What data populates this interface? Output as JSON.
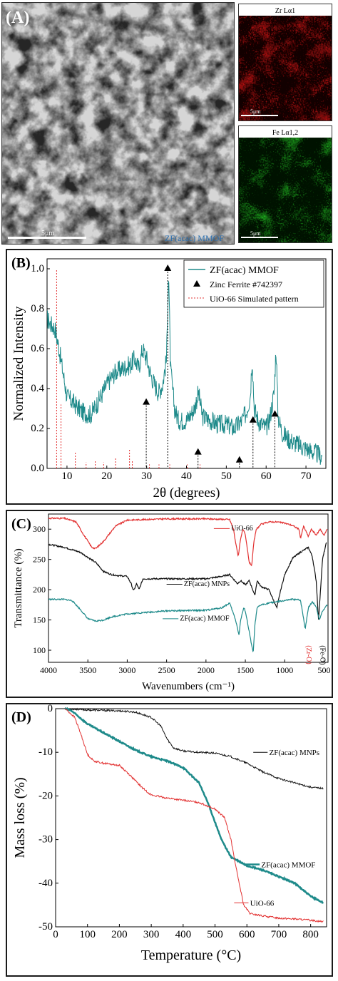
{
  "panel_a": {
    "label": "(A)",
    "sem_scale": "5μm",
    "sem_caption": "ZF(acac) MMOF",
    "zr_title": "Zr Lα1",
    "zr_scale": "5μm",
    "fe_title": "Fe Lα1,2",
    "fe_scale": "5μm",
    "colors": {
      "zr": "#c81414",
      "fe": "#1e9e1e",
      "caption": "#2a6fb0"
    }
  },
  "chart_data": [
    {
      "id": "B",
      "type": "line",
      "label": "(B)",
      "xlabel": "2θ (degrees)",
      "ylabel": "Normalized Intensity",
      "xlim": [
        5,
        75
      ],
      "ylim": [
        0,
        1.05
      ],
      "xticks": [
        "10",
        "20",
        "30",
        "40",
        "50",
        "60",
        "70"
      ],
      "yticks": [
        "0.0",
        "0.2",
        "0.4",
        "0.6",
        "0.8",
        "1.0"
      ],
      "legend": [
        "ZF(acac) MMOF",
        "Zinc Ferrite #742397",
        "UiO-66 Simulated pattern"
      ],
      "legend_position": "top-right",
      "series": [
        {
          "name": "ZF(acac) MMOF",
          "color": "#1e8a8a",
          "x": [
            5,
            6,
            7,
            8,
            9,
            10,
            12,
            14,
            16,
            18,
            20,
            22,
            24,
            26,
            27,
            28,
            29,
            30,
            31,
            32,
            33,
            34,
            35,
            35.5,
            36,
            37,
            38,
            40,
            42,
            43,
            44,
            46,
            48,
            50,
            52,
            54,
            55,
            56,
            56.5,
            57,
            58,
            60,
            61,
            62,
            62.5,
            63,
            64,
            66,
            68,
            70,
            72,
            74
          ],
          "y": [
            0.75,
            0.72,
            0.7,
            0.6,
            0.48,
            0.36,
            0.32,
            0.28,
            0.27,
            0.34,
            0.42,
            0.48,
            0.5,
            0.52,
            0.55,
            0.5,
            0.6,
            0.55,
            0.47,
            0.42,
            0.38,
            0.42,
            0.55,
            1.0,
            0.5,
            0.3,
            0.24,
            0.24,
            0.3,
            0.38,
            0.26,
            0.24,
            0.22,
            0.22,
            0.2,
            0.24,
            0.28,
            0.36,
            0.56,
            0.3,
            0.24,
            0.2,
            0.26,
            0.38,
            0.61,
            0.26,
            0.18,
            0.14,
            0.12,
            0.1,
            0.08,
            0.06
          ]
        },
        {
          "name": "Zinc Ferrite #742397",
          "color": "#000000",
          "type": "markers",
          "x": [
            29.9,
            35.3,
            42.9,
            53.3,
            56.7,
            62.2
          ],
          "y": [
            0.33,
            1.0,
            0.08,
            0.04,
            0.24,
            0.27
          ]
        },
        {
          "name": "UiO-66 Simulated pattern",
          "color": "#e23030",
          "type": "sticks",
          "x": [
            7.4,
            8.5,
            12.1,
            14.8,
            17.1,
            19.2,
            22.2,
            25.7,
            26.4,
            30.7,
            33.1,
            35.8,
            40.2,
            43.4
          ],
          "y": [
            1.0,
            0.32,
            0.08,
            0.03,
            0.04,
            0.03,
            0.05,
            0.1,
            0.04,
            0.02,
            0.02,
            0.02,
            0.02,
            0.02
          ]
        }
      ]
    },
    {
      "id": "C",
      "type": "line",
      "label": "(C)",
      "xlabel": "Wavenumbers (cm⁻¹)",
      "ylabel": "Transmittance (%)",
      "xlim": [
        4000,
        450
      ],
      "ylim": [
        80,
        325
      ],
      "xticks": [
        "4000",
        "3500",
        "3000",
        "2500",
        "2000",
        "1500",
        "1000",
        "500"
      ],
      "yticks": [
        "100",
        "150",
        "200",
        "250",
        "300"
      ],
      "annotations": [
        "UiO-66",
        "ZF(acac) MNPs",
        "ZF(acac) MMOF",
        "(Zr-O)",
        "(Fe-O)"
      ],
      "series": [
        {
          "name": "UiO-66",
          "color": "#e23030",
          "x": [
            4000,
            3800,
            3650,
            3550,
            3450,
            3400,
            3300,
            3150,
            3000,
            2500,
            2000,
            1700,
            1650,
            1620,
            1590,
            1560,
            1530,
            1500,
            1450,
            1420,
            1390,
            1360,
            1300,
            1200,
            1100,
            1000,
            900,
            820,
            800,
            760,
            700,
            660,
            600,
            550,
            500,
            460
          ],
          "y": [
            318,
            318,
            312,
            290,
            270,
            268,
            280,
            305,
            315,
            317,
            317,
            316,
            300,
            275,
            255,
            285,
            300,
            290,
            245,
            240,
            280,
            300,
            308,
            312,
            312,
            310,
            306,
            300,
            285,
            305,
            288,
            300,
            290,
            300,
            290,
            300
          ]
        },
        {
          "name": "ZF(acac) MNPs",
          "color": "#111111",
          "x": [
            4000,
            3800,
            3600,
            3400,
            3300,
            3200,
            3100,
            3000,
            2950,
            2920,
            2880,
            2850,
            2800,
            2500,
            2000,
            1800,
            1700,
            1600,
            1560,
            1500,
            1450,
            1400,
            1380,
            1350,
            1300,
            1200,
            1150,
            1100,
            1050,
            1000,
            900,
            800,
            700,
            650,
            600,
            570,
            520,
            470
          ],
          "y": [
            275,
            270,
            262,
            245,
            230,
            225,
            223,
            222,
            210,
            198,
            210,
            200,
            218,
            218,
            218,
            222,
            225,
            210,
            215,
            208,
            215,
            198,
            190,
            215,
            205,
            200,
            185,
            170,
            200,
            225,
            252,
            262,
            270,
            255,
            215,
            150,
            250,
            278
          ]
        },
        {
          "name": "ZF(acac) MMOF",
          "color": "#1e8a8a",
          "x": [
            4000,
            3800,
            3700,
            3600,
            3500,
            3400,
            3300,
            3200,
            3000,
            2500,
            2000,
            1800,
            1700,
            1650,
            1620,
            1580,
            1560,
            1520,
            1500,
            1450,
            1420,
            1400,
            1380,
            1350,
            1300,
            1200,
            1100,
            1000,
            900,
            800,
            770,
            740,
            700,
            650,
            600,
            560,
            520,
            460
          ],
          "y": [
            184,
            184,
            182,
            168,
            152,
            148,
            150,
            155,
            160,
            165,
            166,
            170,
            178,
            160,
            148,
            125,
            150,
            170,
            165,
            130,
            108,
            95,
            140,
            170,
            175,
            178,
            180,
            182,
            184,
            183,
            160,
            135,
            170,
            180,
            172,
            150,
            165,
            175
          ]
        }
      ]
    },
    {
      "id": "D",
      "type": "line",
      "label": "(D)",
      "xlabel": "Temperature (°C)",
      "ylabel": "Mass loss (%)",
      "xlim": [
        0,
        850
      ],
      "ylim": [
        -50,
        0
      ],
      "xticks": [
        "0",
        "100",
        "200",
        "300",
        "400",
        "500",
        "600",
        "700",
        "800"
      ],
      "yticks": [
        "0",
        "-10",
        "-20",
        "-30",
        "-40",
        "-50"
      ],
      "annotations": [
        "ZF(acac) MNPs",
        "ZF(acac) MMOF",
        "UiO-66"
      ],
      "series": [
        {
          "name": "ZF(acac) MNPs",
          "color": "#111111",
          "x": [
            30,
            100,
            200,
            250,
            300,
            330,
            350,
            370,
            400,
            450,
            500,
            550,
            600,
            650,
            700,
            750,
            800,
            840
          ],
          "y": [
            0,
            -0.3,
            -0.5,
            -0.8,
            -2,
            -4,
            -7,
            -9,
            -9.7,
            -10,
            -10.2,
            -11,
            -12.5,
            -14.5,
            -16,
            -17,
            -18,
            -18.3
          ]
        },
        {
          "name": "ZF(acac) MMOF",
          "color": "#1e8a8a",
          "x": [
            30,
            50,
            100,
            150,
            200,
            250,
            300,
            350,
            400,
            450,
            480,
            500,
            520,
            550,
            600,
            650,
            700,
            750,
            800,
            840
          ],
          "y": [
            0,
            -0.5,
            -3.5,
            -5.5,
            -7.5,
            -9.5,
            -11,
            -12,
            -13.5,
            -17,
            -22,
            -26,
            -30,
            -34,
            -36,
            -37,
            -38.5,
            -40,
            -43,
            -44.5
          ]
        },
        {
          "name": "UiO-66",
          "color": "#e23030",
          "x": [
            30,
            60,
            80,
            100,
            120,
            150,
            200,
            230,
            270,
            300,
            350,
            400,
            450,
            500,
            530,
            550,
            570,
            590,
            610,
            650,
            700,
            750,
            800,
            840
          ],
          "y": [
            0,
            -2,
            -6,
            -10.5,
            -12,
            -12.5,
            -13,
            -15,
            -18,
            -19.8,
            -20.5,
            -21,
            -21.5,
            -23,
            -25,
            -30,
            -38,
            -45,
            -47,
            -47.5,
            -48,
            -48.2,
            -48.5,
            -48.8
          ]
        }
      ]
    }
  ]
}
